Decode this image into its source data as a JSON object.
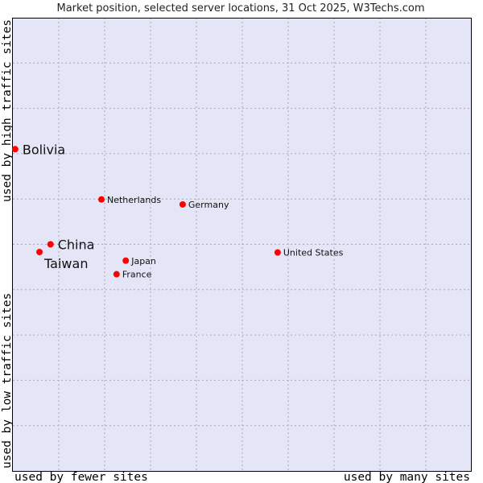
{
  "chart_data": {
    "type": "scatter",
    "title": "Market position, selected server locations, 31 Oct 2025, W3Techs.com",
    "xlabel_low": "used by fewer sites",
    "xlabel_high": "used by many sites",
    "ylabel_low": "used by low traffic sites",
    "ylabel_high": "used by high traffic sites",
    "xlim": [
      0,
      10
    ],
    "ylim": [
      0,
      10
    ],
    "grid": true,
    "colors": {
      "plot_bg": "#e4e6f8",
      "point": "#ff0000",
      "grid": "#aaaaaa"
    },
    "points": [
      {
        "label": "Bolivia",
        "x": 0.05,
        "y": 7.1,
        "emphasis": true
      },
      {
        "label": "Netherlands",
        "x": 1.93,
        "y": 5.99,
        "emphasis": false
      },
      {
        "label": "Germany",
        "x": 3.7,
        "y": 5.88,
        "emphasis": false
      },
      {
        "label": "China",
        "x": 0.82,
        "y": 5.0,
        "emphasis": true
      },
      {
        "label": "Taiwan",
        "x": 0.58,
        "y": 4.83,
        "emphasis": true
      },
      {
        "label": "Japan",
        "x": 2.46,
        "y": 4.64,
        "emphasis": false
      },
      {
        "label": "France",
        "x": 2.26,
        "y": 4.34,
        "emphasis": false
      },
      {
        "label": "United States",
        "x": 5.77,
        "y": 4.82,
        "emphasis": false
      }
    ]
  }
}
